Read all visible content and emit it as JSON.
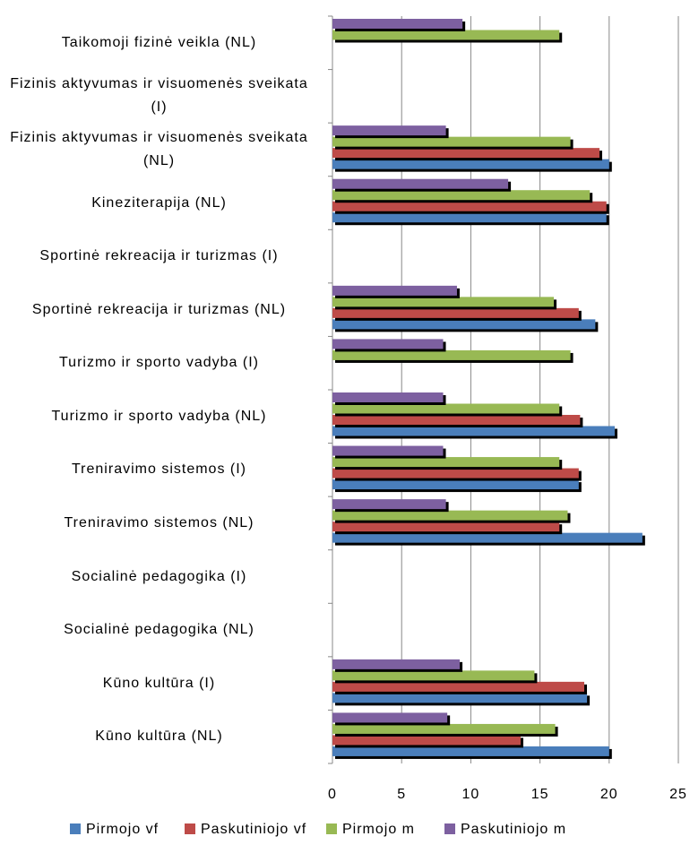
{
  "chart_data": {
    "type": "bar",
    "orientation": "horizontal",
    "categories": [
      "Taikomoji fizinė veikla (NL)",
      "Fizinis aktyvumas ir visuomenės sveikata (I)",
      "Fizinis aktyvumas ir visuomenės sveikata (NL)",
      "Kineziterapija (NL)",
      "Sportinė rekreacija ir turizmas (I)",
      "Sportinė rekreacija ir turizmas (NL)",
      "Turizmo ir sporto vadyba (I)",
      "Turizmo ir sporto vadyba (NL)",
      "Treniravimo sistemos (I)",
      "Treniravimo sistemos (NL)",
      "Socialinė pedagogika (I)",
      "Socialinė pedagogika (NL)",
      "Kūno kultūra (I)",
      "Kūno kultūra (NL)"
    ],
    "series": [
      {
        "name": "Pirmojo vf",
        "color": "#4a7ebb",
        "values": [
          null,
          null,
          20.0,
          19.8,
          null,
          19.0,
          null,
          20.4,
          17.8,
          22.4,
          null,
          null,
          18.4,
          20.0
        ]
      },
      {
        "name": "Paskutiniojo vf",
        "color": "#be4b48",
        "values": [
          null,
          null,
          19.3,
          19.8,
          null,
          17.8,
          null,
          17.9,
          17.8,
          16.4,
          null,
          null,
          18.2,
          13.6
        ]
      },
      {
        "name": "Pirmojo m",
        "color": "#98b954",
        "values": [
          16.4,
          null,
          17.2,
          18.6,
          null,
          16.0,
          17.2,
          16.4,
          16.4,
          17.0,
          null,
          null,
          14.6,
          16.1
        ]
      },
      {
        "name": "Paskutiniojo m",
        "color": "#7d60a0",
        "values": [
          9.4,
          null,
          8.2,
          12.7,
          null,
          9.0,
          8.0,
          8.0,
          8.0,
          8.2,
          null,
          null,
          9.2,
          8.3
        ]
      }
    ],
    "xlim": [
      0,
      25
    ],
    "xticks": [
      0,
      5,
      10,
      15,
      20,
      25
    ],
    "grid": true,
    "legend": "bottom"
  }
}
